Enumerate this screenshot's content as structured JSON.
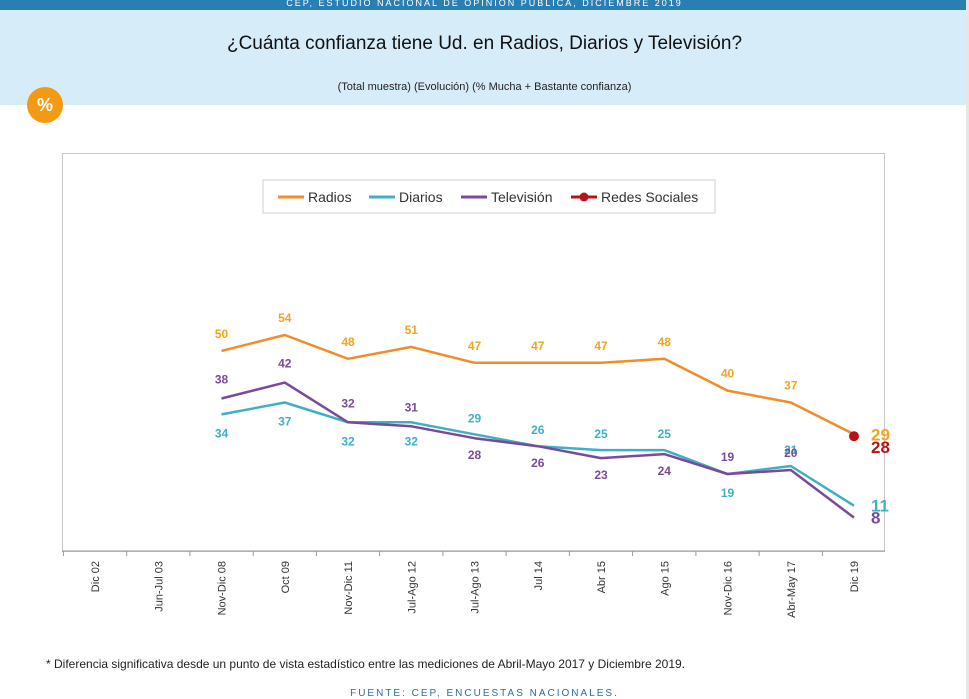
{
  "header": {
    "top_banner": "CEP, ESTUDIO NACIONAL DE OPINIÓN PÚBLICA, DICIEMBRE 2019",
    "title": "¿Cuánta confianza tiene Ud. en Radios, Diarios y Televisión?",
    "subtitle": "(Total muestra) (Evolución) (% Mucha + Bastante confianza)",
    "badge": "%"
  },
  "colors": {
    "radios": "#f08c2a",
    "diarios": "#3fb0c4",
    "television": "#7a4a9a",
    "redes": "#b5131a",
    "label_orange": "#f0a51e",
    "header_bg": "#d6ecf8",
    "badge": "#f49a12"
  },
  "chart_data": {
    "type": "line",
    "categories": [
      "Dic 02",
      "Jun-Jul 03",
      "Nov-Dic 08",
      "Oct 09",
      "Nov-Dic 11",
      "Jul-Ago 12",
      "Jul-Ago 13",
      "Jul 14",
      "Abr 15",
      "Ago 15",
      "Nov-Dic 16",
      "Abr-May 17",
      "Dic 19"
    ],
    "series": [
      {
        "name": "Radios",
        "key": "radios",
        "values": [
          null,
          null,
          50,
          54,
          48,
          51,
          47,
          47,
          47,
          48,
          40,
          37,
          29
        ]
      },
      {
        "name": "Diarios",
        "key": "diarios",
        "values": [
          null,
          null,
          34,
          37,
          32,
          32,
          29,
          26,
          25,
          25,
          19,
          21,
          11
        ]
      },
      {
        "name": "Televisión",
        "key": "television",
        "values": [
          null,
          null,
          38,
          42,
          32,
          31,
          28,
          26,
          23,
          24,
          19,
          20,
          8
        ]
      },
      {
        "name": "Redes Sociales",
        "key": "redes",
        "values": [
          null,
          null,
          null,
          null,
          null,
          null,
          null,
          null,
          null,
          null,
          null,
          null,
          28
        ]
      }
    ],
    "legend_position": "top-center",
    "grid": false
  },
  "footnote": "* Diferencia significativa desde un punto de vista estadístico entre las mediciones de Abril-Mayo 2017 y Diciembre 2019.",
  "source": "FUENTE: CEP, ENCUESTAS NACIONALES."
}
